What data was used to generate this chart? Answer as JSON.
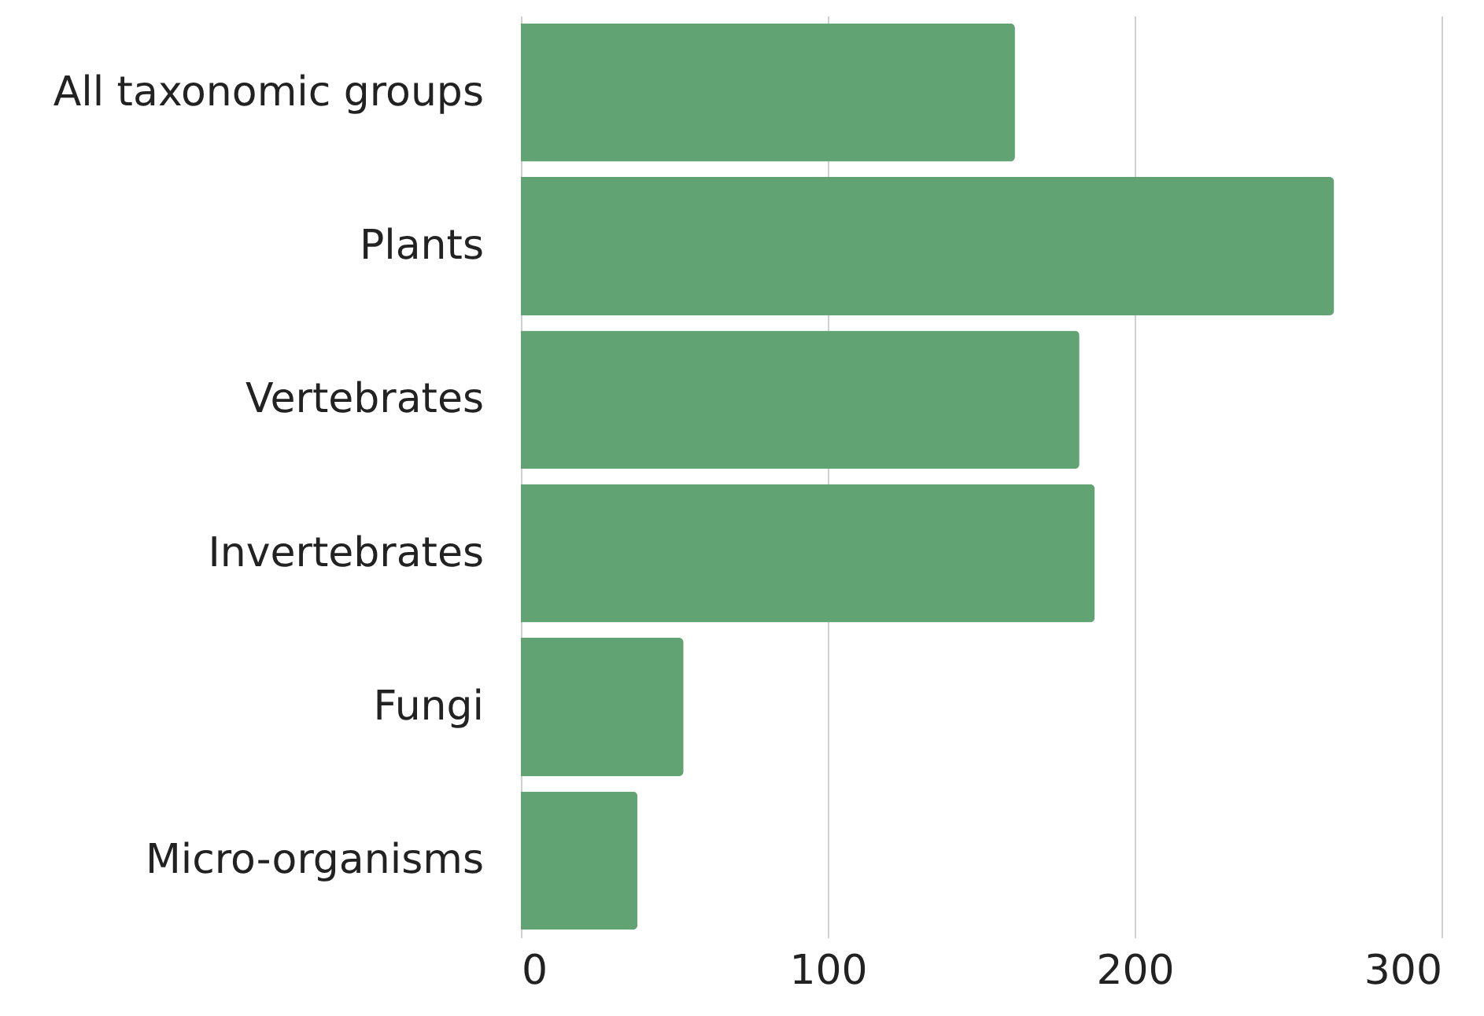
{
  "chart_data": {
    "type": "bar",
    "orientation": "horizontal",
    "categories": [
      "All taxonomic groups",
      "Plants",
      "Vertebrates",
      "Invertebrates",
      "Fungi",
      "Micro-organisms"
    ],
    "values": [
      161,
      265,
      182,
      187,
      53,
      38
    ],
    "color": "#62a373",
    "xlim": [
      0,
      300
    ],
    "xticks": [
      0,
      100,
      200,
      300
    ],
    "grid": "x"
  }
}
